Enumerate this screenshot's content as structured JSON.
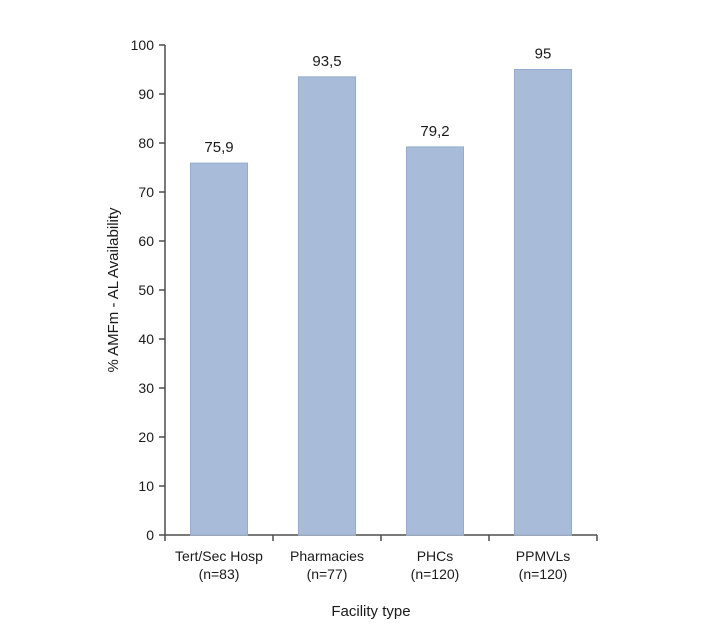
{
  "chart_data": {
    "type": "bar",
    "categories": [
      [
        "Tert/Sec Hosp",
        "(n=83)"
      ],
      [
        "Pharmacies",
        "(n=77)"
      ],
      [
        "PHCs",
        "(n=120)"
      ],
      [
        "PPMVLs",
        "(n=120)"
      ]
    ],
    "values": [
      75.9,
      93.5,
      79.2,
      95
    ],
    "value_labels": [
      "75,9",
      "93,5",
      "79,2",
      "95"
    ],
    "title": "",
    "xlabel": "Facility type",
    "ylabel": "% AMFm - AL Availability",
    "ylim": [
      0,
      100
    ],
    "yticks": [
      0,
      10,
      20,
      30,
      40,
      50,
      60,
      70,
      80,
      90,
      100
    ],
    "grid": false,
    "legend": "none",
    "colors": {
      "bar_fill": "#a8bcd9",
      "bar_stroke": "#94abcc",
      "axis": "#4d4d4d"
    }
  }
}
